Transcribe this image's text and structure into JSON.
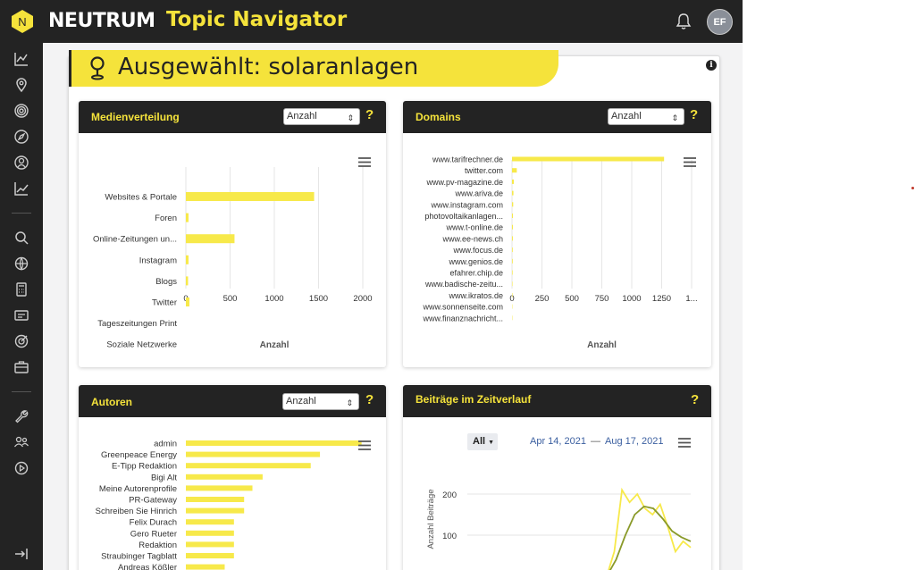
{
  "app": {
    "brand": "NEUTRUM",
    "title": "Topic Navigator",
    "logo_letter": "N",
    "avatar_initials": "EF"
  },
  "banner": {
    "text": "Ausgewählt: solaranlagen",
    "info": "i"
  },
  "colors": {
    "accent": "#f5e33b",
    "dark": "#232323",
    "bar": "#f7e94a",
    "line_light": "#f7e94a",
    "line_dark": "#8a9a2a"
  },
  "sidebar": {
    "icons": [
      "chart-line-icon",
      "map-pin-icon",
      "target-icon",
      "compass-icon",
      "user-search-icon",
      "trend-icon",
      "search-icon",
      "globe-icon",
      "calculator-icon",
      "card-icon",
      "bullseye-icon",
      "briefcase-icon",
      "wrench-icon",
      "users-icon",
      "play-icon"
    ],
    "logout_icon": "logout-icon"
  },
  "cards": {
    "medien": {
      "title": "Medienverteilung",
      "select": "Anzahl",
      "help": "?"
    },
    "domains": {
      "title": "Domains",
      "select": "Anzahl",
      "help": "?"
    },
    "autoren": {
      "title": "Autoren",
      "select": "Anzahl",
      "help": "?"
    },
    "zeit": {
      "title": "Beiträge im Zeitverlauf",
      "help": "?",
      "range_button": "All",
      "date_from": "Apr 14, 2021",
      "date_sep": "—",
      "date_to": "Aug 17, 2021"
    }
  },
  "chart_data": [
    {
      "type": "bar",
      "orientation": "horizontal",
      "categories": [
        "Websites & Portale",
        "Foren",
        "Online-Zeitungen un...",
        "Instagram",
        "Blogs",
        "Twitter",
        "Tageszeitungen Print",
        "Soziale Netzwerke"
      ],
      "values": [
        1450,
        30,
        550,
        30,
        25,
        40,
        0,
        0
      ],
      "xlabel": "Anzahl",
      "xlim": [
        0,
        2000
      ],
      "xticks": [
        "0",
        "500",
        "1000",
        "1500",
        "2000"
      ]
    },
    {
      "type": "bar",
      "orientation": "horizontal",
      "categories": [
        "www.tarifrechner.de",
        "twitter.com",
        "www.pv-magazine.de",
        "www.ariva.de",
        "www.instagram.com",
        "photovoltaikanlagen...",
        "www.t-online.de",
        "www.ee-news.ch",
        "www.focus.de",
        "www.genios.de",
        "efahrer.chip.de",
        "www.badische-zeitu...",
        "www.ikratos.de",
        "www.sonnenseite.com",
        "www.finanznachricht..."
      ],
      "values": [
        1270,
        40,
        15,
        12,
        10,
        8,
        8,
        7,
        6,
        6,
        5,
        4,
        4,
        3,
        3
      ],
      "xlabel": "Anzahl",
      "xlim": [
        0,
        1500
      ],
      "xticks": [
        "0",
        "250",
        "500",
        "750",
        "1000",
        "1250",
        "1..."
      ]
    },
    {
      "type": "bar",
      "orientation": "horizontal",
      "categories": [
        "admin",
        "Greenpeace Energy",
        "E-Tipp Redaktion",
        "Bigi Alt",
        "Meine Autorenprofile",
        "PR-Gateway",
        "Schreiben Sie Hinrich",
        "Felix Durach",
        "Gero Rueter",
        "Redaktion",
        "Straubinger Tagblatt",
        "Andreas Kößler"
      ],
      "values": [
        190,
        145,
        135,
        83,
        72,
        63,
        63,
        52,
        52,
        52,
        52,
        42
      ],
      "xlabel": "Anzahl",
      "xlim": [
        0,
        200
      ]
    },
    {
      "type": "line",
      "ylabel": "Anzahl Beiträge",
      "yticks": [
        "200",
        "100"
      ],
      "series": [
        {
          "values": [
            0,
            60,
            210,
            180,
            200,
            165,
            150,
            175,
            120,
            60,
            85,
            70
          ]
        },
        {
          "values": [
            0,
            40,
            100,
            150,
            170,
            165,
            140,
            110,
            95,
            85
          ]
        }
      ]
    }
  ]
}
